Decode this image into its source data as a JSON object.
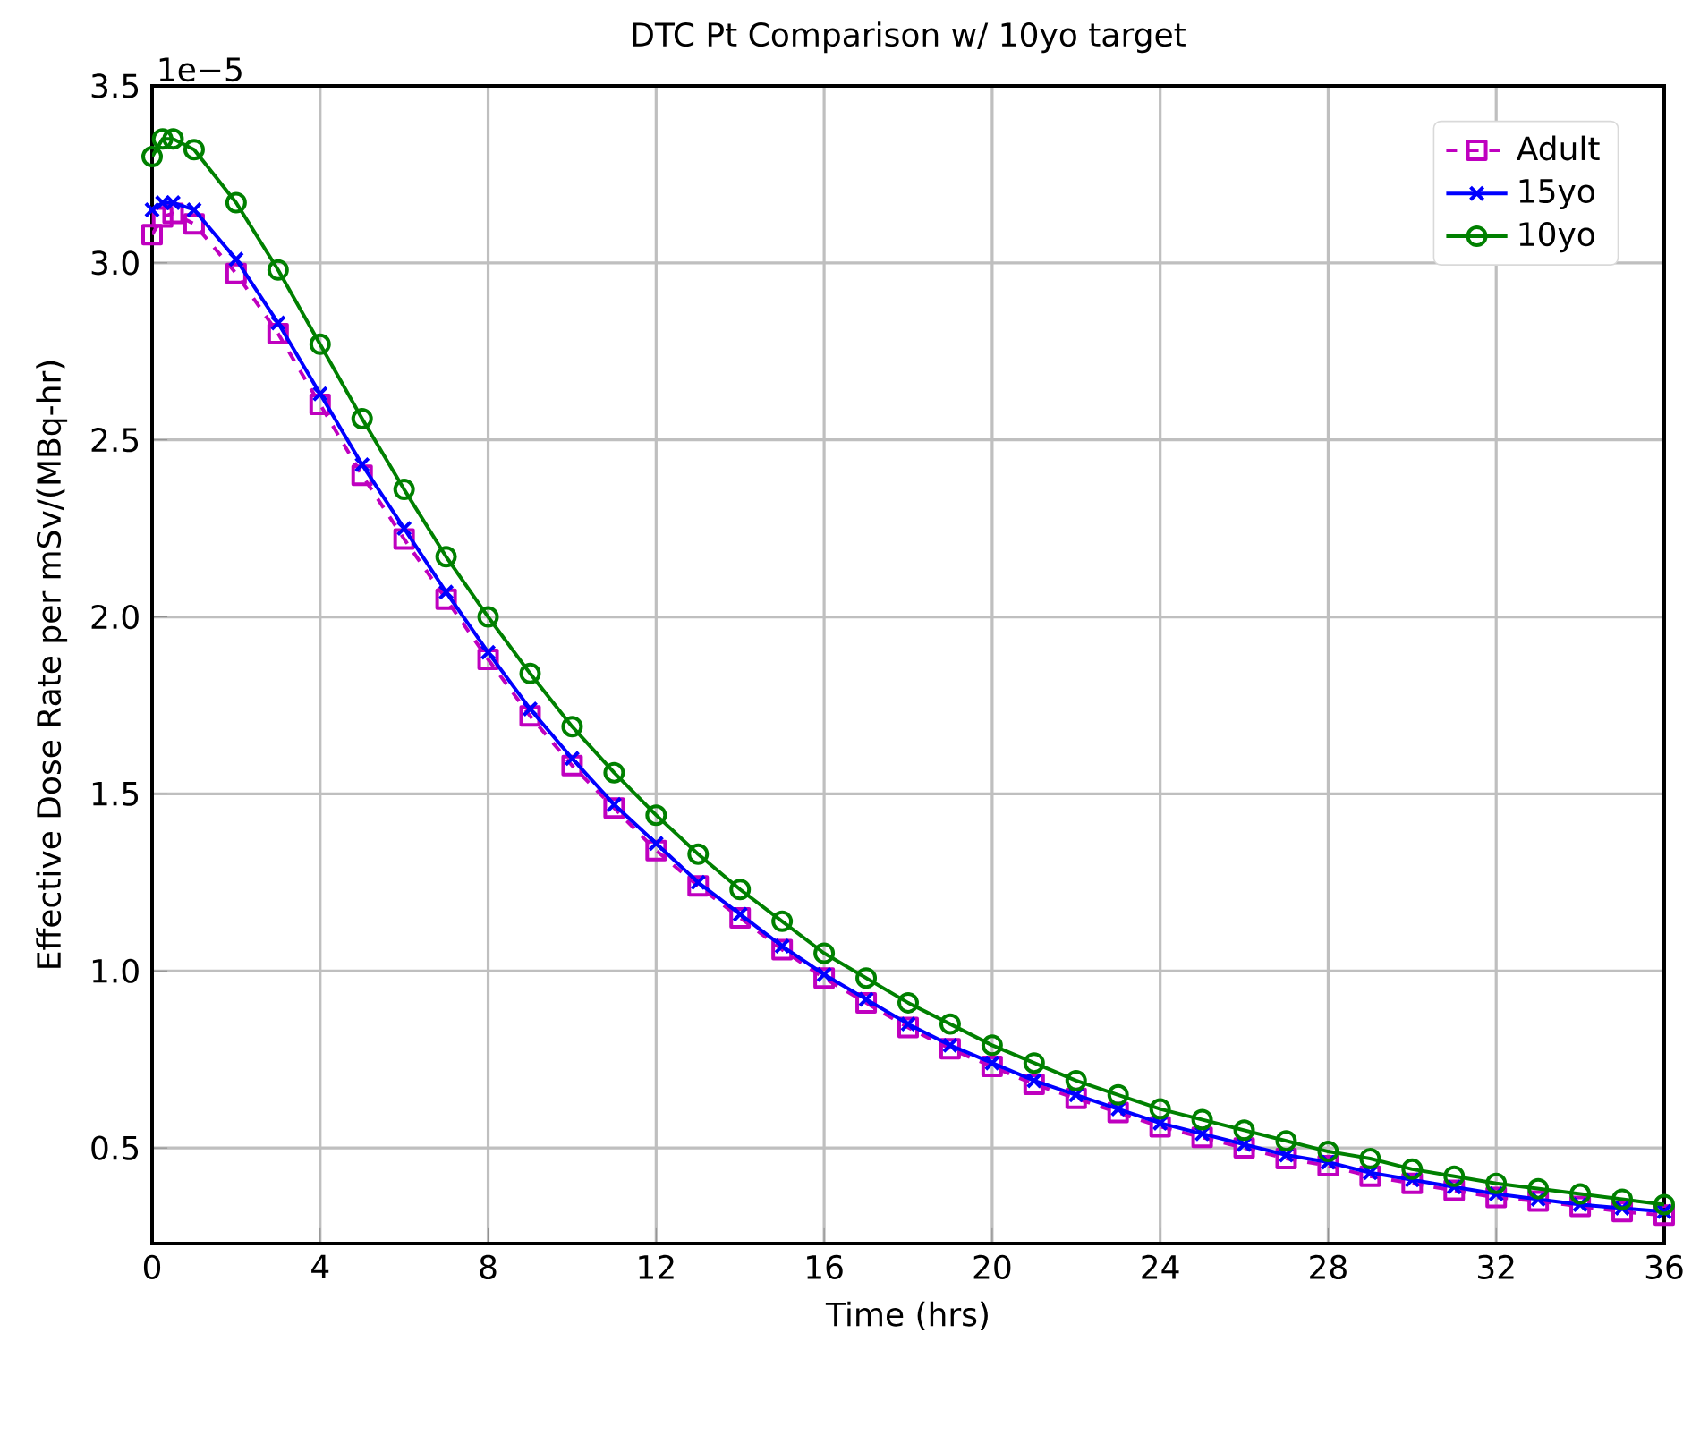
{
  "chart_data": {
    "type": "line",
    "title": "DTC Pt Comparison w/ 10yo target",
    "xlabel": "Time (hrs)",
    "ylabel": "Effective Dose Rate per mSv/(MBq-hr)",
    "annotations": [
      "1e−5"
    ],
    "x": [
      0,
      0.25,
      0.5,
      1,
      2,
      3,
      4,
      5,
      6,
      7,
      8,
      9,
      10,
      11,
      12,
      13,
      14,
      15,
      16,
      17,
      18,
      19,
      20,
      21,
      22,
      23,
      24,
      25,
      26,
      27,
      28,
      29,
      30,
      31,
      32,
      33,
      34,
      35,
      36
    ],
    "series": [
      {
        "name": "Adult",
        "color": "#bf00bf",
        "marker": "square",
        "line_style": "dashed",
        "values": [
          3.08,
          3.13,
          3.14,
          3.11,
          2.97,
          2.8,
          2.6,
          2.4,
          2.22,
          2.05,
          1.88,
          1.72,
          1.58,
          1.46,
          1.34,
          1.24,
          1.15,
          1.06,
          0.98,
          0.91,
          0.84,
          0.78,
          0.73,
          0.68,
          0.64,
          0.6,
          0.56,
          0.53,
          0.5,
          0.47,
          0.45,
          0.42,
          0.4,
          0.38,
          0.36,
          0.35,
          0.335,
          0.32,
          0.31
        ]
      },
      {
        "name": "15yo",
        "color": "#0000ff",
        "marker": "cross",
        "line_style": "solid",
        "values": [
          3.15,
          3.17,
          3.17,
          3.15,
          3.01,
          2.83,
          2.63,
          2.43,
          2.25,
          2.07,
          1.9,
          1.74,
          1.6,
          1.47,
          1.36,
          1.25,
          1.16,
          1.07,
          0.99,
          0.92,
          0.85,
          0.79,
          0.74,
          0.69,
          0.65,
          0.61,
          0.57,
          0.54,
          0.51,
          0.48,
          0.46,
          0.43,
          0.41,
          0.39,
          0.37,
          0.355,
          0.34,
          0.33,
          0.32
        ]
      },
      {
        "name": "10yo",
        "color": "#008000",
        "marker": "circle",
        "line_style": "solid",
        "values": [
          3.3,
          3.35,
          3.35,
          3.32,
          3.17,
          2.98,
          2.77,
          2.56,
          2.36,
          2.17,
          2.0,
          1.84,
          1.69,
          1.56,
          1.44,
          1.33,
          1.23,
          1.14,
          1.05,
          0.98,
          0.91,
          0.85,
          0.79,
          0.74,
          0.69,
          0.65,
          0.61,
          0.58,
          0.55,
          0.52,
          0.49,
          0.47,
          0.44,
          0.42,
          0.4,
          0.385,
          0.37,
          0.355,
          0.34
        ]
      }
    ],
    "xlim": [
      0,
      36
    ],
    "xticks": [
      0,
      4,
      8,
      12,
      16,
      20,
      24,
      28,
      32,
      36
    ],
    "ylim": [
      0.23,
      3.5
    ],
    "yticks": [
      {
        "value": 0.5,
        "label": "0.5"
      },
      {
        "value": 1.0,
        "label": "1.0"
      },
      {
        "value": 1.5,
        "label": "1.5"
      },
      {
        "value": 2.0,
        "label": "2.0"
      },
      {
        "value": 2.5,
        "label": "2.5"
      },
      {
        "value": 3.0,
        "label": "3.0"
      },
      {
        "value": 3.5,
        "label": "3.5"
      }
    ],
    "grid": true,
    "legend": "top right"
  }
}
